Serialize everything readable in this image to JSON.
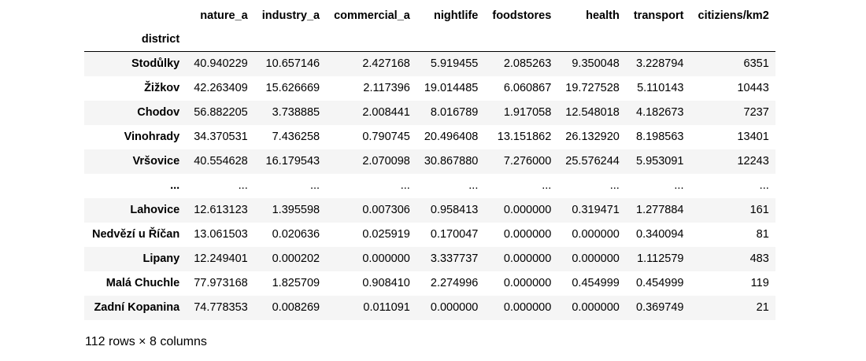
{
  "table": {
    "index_name": "district",
    "columns": [
      "nature_a",
      "industry_a",
      "commercial_a",
      "nightlife",
      "foodstores",
      "health",
      "transport",
      "citiziens/km2"
    ],
    "rows": [
      {
        "index": "Stodůlky",
        "values": [
          "40.940229",
          "10.657146",
          "2.427168",
          "5.919455",
          "2.085263",
          "9.350048",
          "3.228794",
          "6351"
        ]
      },
      {
        "index": "Žižkov",
        "values": [
          "42.263409",
          "15.626669",
          "2.117396",
          "19.014485",
          "6.060867",
          "19.727528",
          "5.110143",
          "10443"
        ]
      },
      {
        "index": "Chodov",
        "values": [
          "56.882205",
          "3.738885",
          "2.008441",
          "8.016789",
          "1.917058",
          "12.548018",
          "4.182673",
          "7237"
        ]
      },
      {
        "index": "Vinohrady",
        "values": [
          "34.370531",
          "7.436258",
          "0.790745",
          "20.496408",
          "13.151862",
          "26.132920",
          "8.198563",
          "13401"
        ]
      },
      {
        "index": "Vršovice",
        "values": [
          "40.554628",
          "16.179543",
          "2.070098",
          "30.867880",
          "7.276000",
          "25.576244",
          "5.953091",
          "12243"
        ]
      },
      {
        "index": "...",
        "values": [
          "...",
          "...",
          "...",
          "...",
          "...",
          "...",
          "...",
          "..."
        ]
      },
      {
        "index": "Lahovice",
        "values": [
          "12.613123",
          "1.395598",
          "0.007306",
          "0.958413",
          "0.000000",
          "0.319471",
          "1.277884",
          "161"
        ]
      },
      {
        "index": "Nedvězí u Říčan",
        "values": [
          "13.061503",
          "0.020636",
          "0.025919",
          "0.170047",
          "0.000000",
          "0.000000",
          "0.340094",
          "81"
        ]
      },
      {
        "index": "Lipany",
        "values": [
          "12.249401",
          "0.000202",
          "0.000000",
          "3.337737",
          "0.000000",
          "0.000000",
          "1.112579",
          "483"
        ]
      },
      {
        "index": "Malá Chuchle",
        "values": [
          "77.973168",
          "1.825709",
          "0.908410",
          "2.274996",
          "0.000000",
          "0.454999",
          "0.454999",
          "119"
        ]
      },
      {
        "index": "Zadní Kopanina",
        "values": [
          "74.778353",
          "0.008269",
          "0.011091",
          "0.000000",
          "0.000000",
          "0.000000",
          "0.369749",
          "21"
        ]
      }
    ],
    "summary": "112 rows × 8 columns"
  },
  "colors": {
    "stripe": "#f5f5f5",
    "background": "#ffffff",
    "text": "#000000"
  }
}
